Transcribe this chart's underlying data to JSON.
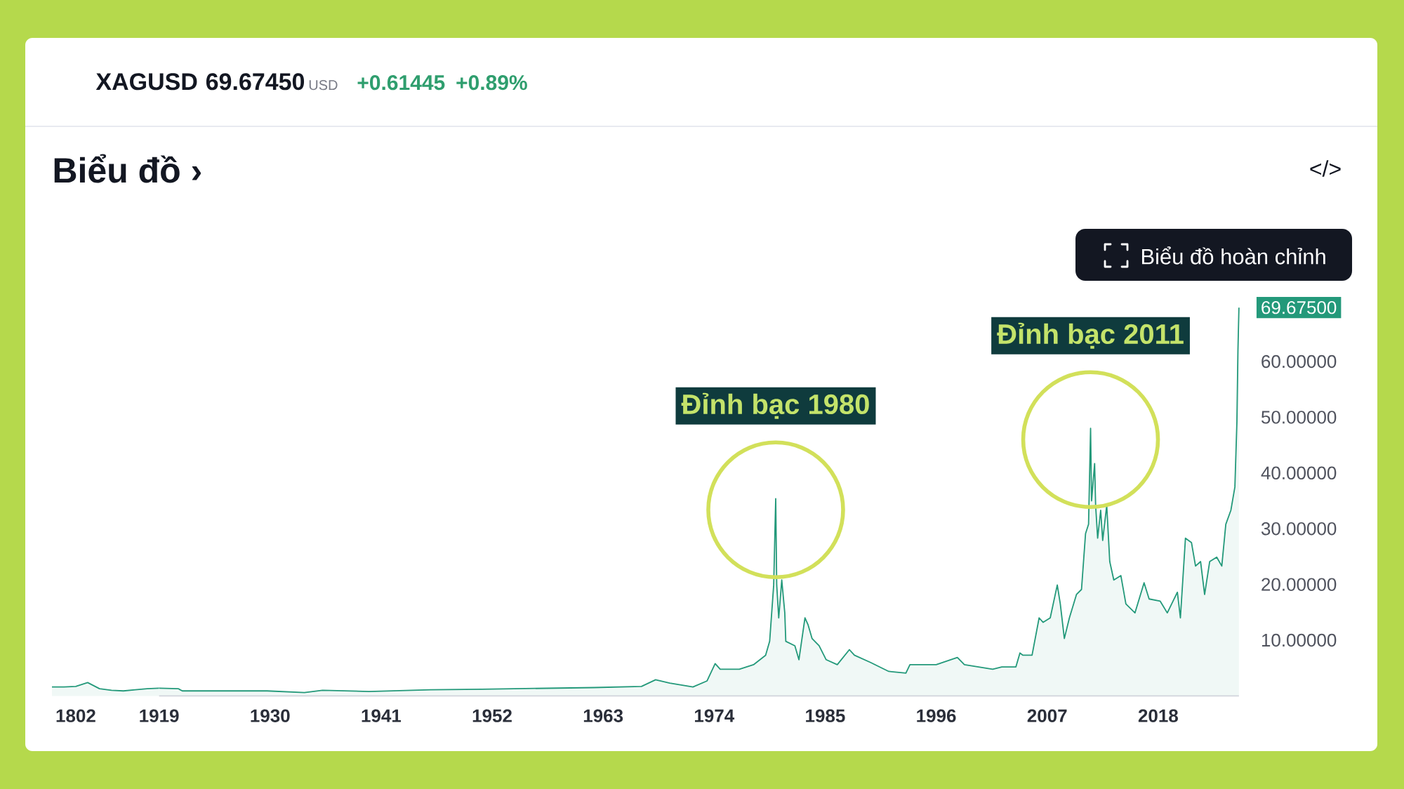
{
  "chart_data": [
    {
      "type": "area",
      "categories": [
        null,
        null,
        "1802",
        null,
        null,
        null,
        null,
        null,
        null,
        "1919"
      ],
      "values": [
        1.6,
        1.6,
        1.7,
        2.4,
        1.3,
        1.0,
        0.9,
        1.1,
        1.3,
        1.4
      ],
      "color": "#23997a",
      "ylim": [
        0,
        69.675
      ],
      "tick_labels": "x"
    },
    {
      "type": "area",
      "title": "XAGUSD",
      "subtitle": "Biểu đồ ›",
      "annotations": [
        "69.67450",
        "USD",
        "+0.61445",
        "+0.89%",
        "</>",
        "Biểu đồ hoàn chỉnh",
        {
          "text": "Đỉnh bạc 1980",
          "x": 1980.1,
          "y": 35.4
        },
        {
          "text": "Đỉnh bạc 2011",
          "x": 2011.3,
          "y": 48.0
        }
      ],
      "x": [
        1919.0,
        1920.9,
        1921.3,
        1929.7,
        1933.4,
        1935.2,
        1939.8,
        1945.9,
        1951.0,
        1962.1,
        1966.8,
        1968.2,
        1969.6,
        1971.9,
        1973.3,
        1974.1,
        1974.6,
        1976.5,
        1977.9,
        1979.1,
        1979.5,
        1979.9,
        1980.1,
        1980.2,
        1980.4,
        1980.7,
        1981.0,
        1981.1,
        1982.0,
        1982.4,
        1983.0,
        1983.3,
        1983.7,
        1984.4,
        1985.1,
        1986.2,
        1987.4,
        1987.9,
        1989.5,
        1991.3,
        1993.0,
        1993.4,
        1996.0,
        1998.1,
        1998.8,
        2001.6,
        2002.5,
        2003.9,
        2004.3,
        2004.6,
        2005.5,
        2006.2,
        2006.6,
        2007.3,
        2008.0,
        2008.3,
        2008.7,
        2009.2,
        2009.9,
        2010.4,
        2010.8,
        2011.1,
        2011.3,
        2011.4,
        2011.7,
        2011.8,
        2012.0,
        2012.3,
        2012.5,
        2012.9,
        2013.2,
        2013.6,
        2014.3,
        2014.8,
        2015.7,
        2016.6,
        2017.1,
        2018.2,
        2018.9,
        2019.9,
        2020.2,
        2020.7,
        2021.3,
        2021.7,
        2022.2,
        2022.6,
        2023.1,
        2023.8,
        2024.3,
        2024.7,
        2025.2,
        2025.6,
        2025.8,
        2025.9,
        2026.0
      ],
      "values": [
        1.4,
        1.3,
        0.9,
        0.9,
        0.6,
        1.0,
        0.8,
        1.1,
        1.2,
        1.5,
        1.7,
        2.9,
        2.3,
        1.6,
        2.7,
        5.8,
        4.8,
        4.8,
        5.6,
        7.3,
        9.8,
        19.9,
        35.4,
        19.9,
        14.0,
        20.8,
        14.9,
        9.8,
        9.0,
        6.5,
        14.0,
        12.8,
        10.3,
        9.0,
        6.5,
        5.6,
        8.3,
        7.3,
        6.0,
        4.4,
        4.1,
        5.6,
        5.6,
        6.9,
        5.6,
        4.8,
        5.2,
        5.2,
        7.7,
        7.3,
        7.3,
        14.0,
        13.2,
        14.0,
        19.9,
        16.5,
        10.3,
        14.0,
        18.2,
        19.1,
        29.1,
        30.8,
        48.0,
        35.0,
        41.7,
        34.2,
        28.3,
        33.3,
        27.9,
        34.2,
        24.1,
        20.8,
        21.6,
        16.5,
        14.9,
        20.3,
        17.4,
        17.0,
        14.9,
        18.6,
        14.0,
        28.3,
        27.5,
        23.3,
        24.1,
        18.2,
        24.1,
        24.9,
        23.3,
        30.8,
        33.3,
        37.5,
        49.3,
        61.9,
        69.675
      ],
      "color": "#23997a",
      "xlim": [
        1919.0,
        2026.0
      ],
      "ylim": [
        0,
        69.675
      ],
      "xticks": [
        1930,
        1941,
        1952,
        1963,
        1974,
        1985,
        1996,
        2007,
        2018
      ],
      "yticks": [
        {
          "value": 10,
          "label": "10.00000"
        },
        {
          "value": 20,
          "label": "20.00000"
        },
        {
          "value": 30,
          "label": "30.00000"
        },
        {
          "value": 40,
          "label": "40.00000"
        },
        {
          "value": 50,
          "label": "50.00000"
        },
        {
          "value": 60,
          "label": "60.00000"
        },
        {
          "value": 69.675,
          "label": "69.67500"
        }
      ]
    }
  ]
}
